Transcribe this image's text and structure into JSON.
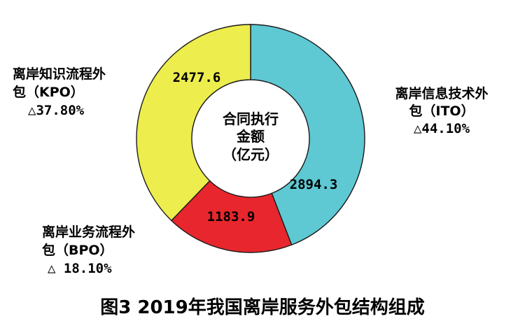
{
  "chart_data": {
    "type": "pie",
    "title": "图3 2019年我国离岸服务外包结构组成",
    "center_label": [
      "合同执行",
      "金额",
      "（亿元）"
    ],
    "slices": [
      {
        "name_lines": [
          "离岸信息技术外",
          "包（ITO）"
        ],
        "value": 2894.3,
        "value_label": "2894.3",
        "growth_label": "△44.10%",
        "color": "#5ec8d3"
      },
      {
        "name_lines": [
          "离岸业务流程外",
          "包（BPO）"
        ],
        "value": 1183.9,
        "value_label": "1183.9",
        "growth_label": "△ 18.10%",
        "color": "#e8262d"
      },
      {
        "name_lines": [
          "离岸知识流程外",
          "包（KPO）"
        ],
        "value": 2477.6,
        "value_label": "2477.6",
        "growth_label": "△37.80%",
        "color": "#eded4e"
      }
    ]
  }
}
